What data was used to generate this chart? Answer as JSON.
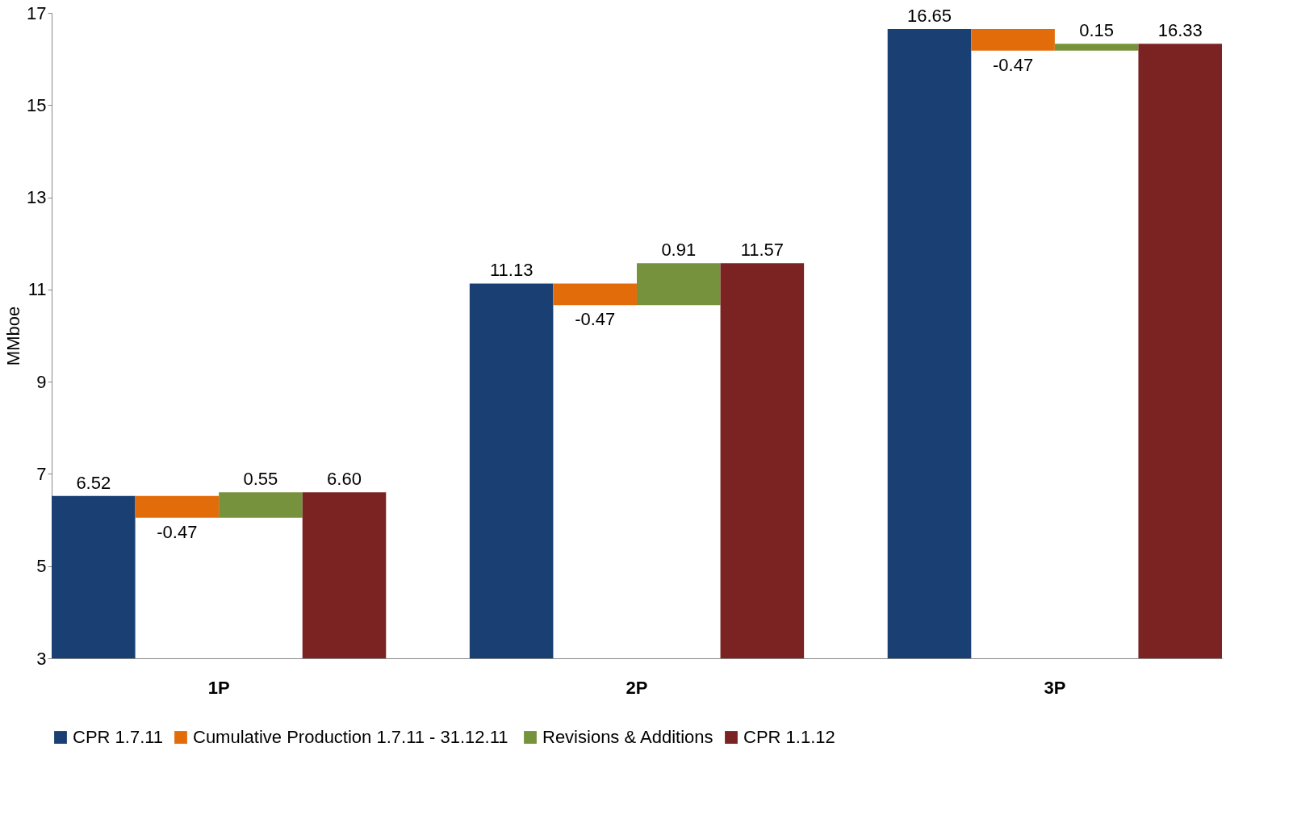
{
  "chart_data": {
    "type": "bar",
    "ylabel": "MMboe",
    "categories": [
      "1P",
      "2P",
      "3P"
    ],
    "ylim": [
      3,
      17
    ],
    "yticks": [
      3,
      5,
      7,
      9,
      11,
      13,
      15,
      17
    ],
    "grid": false,
    "legend": "bottom",
    "series": [
      {
        "name": "CPR 1.7.11",
        "color": "#1a3f73",
        "values": [
          6.52,
          11.13,
          16.65
        ],
        "value_labels": [
          "6.52",
          "11.13",
          "16.65"
        ]
      },
      {
        "name": "Cumulative  Production 1.7.11 - 31.12.11",
        "color": "#e36c0a",
        "values": [
          -0.47,
          -0.47,
          -0.47
        ],
        "base": [
          6.52,
          11.13,
          16.65
        ],
        "value_labels": [
          "-0.47",
          "-0.47",
          "-0.47"
        ]
      },
      {
        "name": "Revisions & Additions",
        "color": "#76923c",
        "values": [
          0.55,
          0.91,
          0.15
        ],
        "base": [
          6.05,
          10.66,
          16.18
        ],
        "value_labels": [
          "0.55",
          "0.91",
          "0.15"
        ]
      },
      {
        "name": "CPR 1.1.12",
        "color": "#7b2323",
        "values": [
          6.6,
          11.57,
          16.33
        ],
        "value_labels": [
          "6.60",
          "11.57",
          "16.33"
        ]
      }
    ]
  }
}
